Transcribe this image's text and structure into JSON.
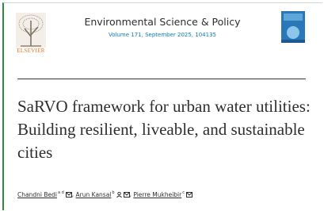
{
  "header": {
    "publisher": "ELSEVIER",
    "journal": "Environmental Science & Policy",
    "volume": "Volume 171, September 2025, 104135"
  },
  "article": {
    "title": "SaRVO framework for urban water utilities: Building resilient, liveable, and sustainable cities",
    "authors": [
      {
        "name": "Chandni Bedi",
        "affiliations": "a d"
      },
      {
        "name": "Arun Kansal",
        "affiliations": "b"
      },
      {
        "name": "Pierre Mukheibir",
        "affiliations": "c"
      }
    ],
    "author_separator": ","
  }
}
